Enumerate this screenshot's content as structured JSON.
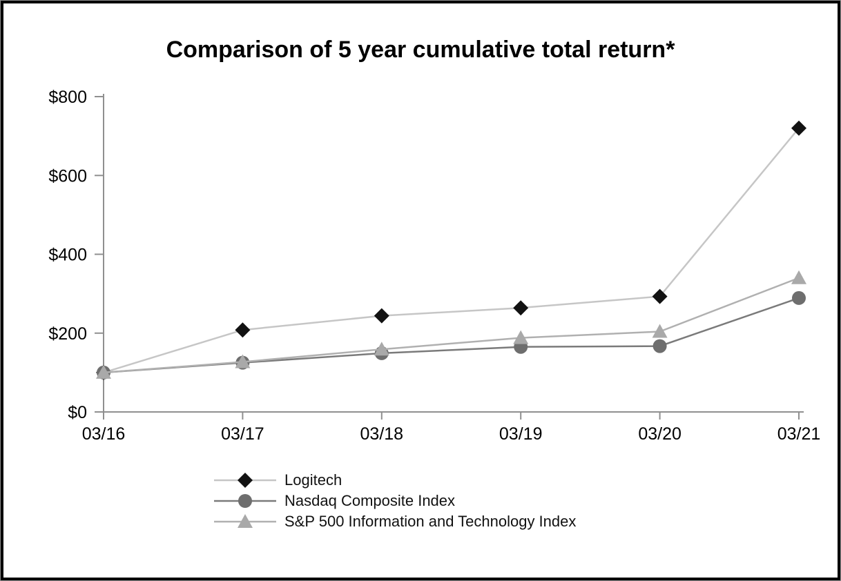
{
  "page": {
    "title": "Comparison of 5 year cumulative total return*"
  },
  "chart_data": {
    "type": "line",
    "title": "Comparison of 5 year cumulative total return*",
    "categories": [
      "03/16",
      "03/17",
      "03/18",
      "03/19",
      "03/20",
      "03/21"
    ],
    "series": [
      {
        "name": "Logitech",
        "marker": "diamond",
        "line_color": "#c6c6c6",
        "marker_color": "#121212",
        "values": [
          100,
          208,
          244,
          264,
          293,
          720
        ]
      },
      {
        "name": "Nasdaq Composite Index",
        "marker": "circle",
        "line_color": "#7a7a7a",
        "marker_color": "#6e6e6e",
        "values": [
          100,
          125,
          149,
          165,
          167,
          289
        ]
      },
      {
        "name": "S&P 500 Information and Technology Index",
        "marker": "triangle",
        "line_color": "#b0b0b0",
        "marker_color": "#a9a9a9",
        "values": [
          100,
          127,
          159,
          188,
          204,
          340
        ]
      }
    ],
    "ylim": [
      0,
      800
    ],
    "y_tick_values": [
      0,
      200,
      400,
      600,
      800
    ],
    "y_tick_labels": [
      "$0",
      "$200",
      "$400",
      "$600",
      "$800"
    ],
    "axis_color": "#8f8f8f",
    "grid": false,
    "legend_position": "bottom-left"
  }
}
